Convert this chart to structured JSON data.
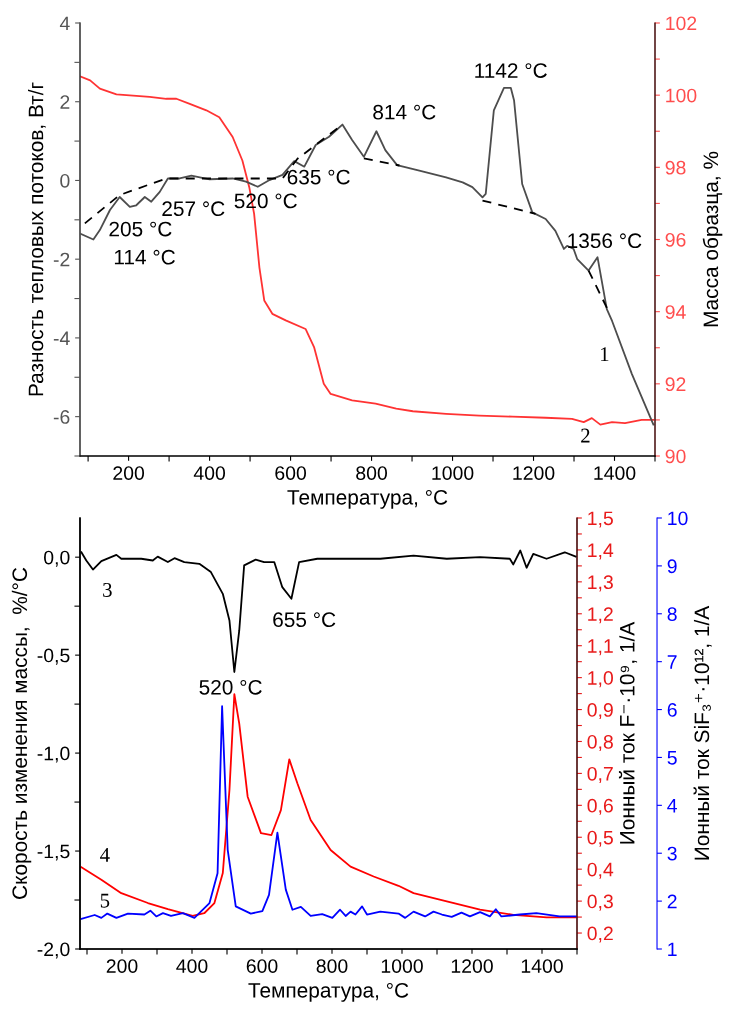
{
  "chart_data": [
    {
      "type": "line",
      "xlabel": "Температура, °C",
      "ylabel": "Разность тепловых потоков, Вт/г",
      "y2label": "Масса образца, %",
      "xlim": [
        80,
        1500
      ],
      "xticks": [
        {
          "value": 100,
          "label": null
        },
        200,
        {
          "value": 300,
          "label": null
        },
        400,
        {
          "value": 500,
          "label": null
        },
        600,
        {
          "value": 700,
          "label": null
        },
        800,
        {
          "value": 900,
          "label": null
        },
        1000,
        {
          "value": 1100,
          "label": null
        },
        1200,
        {
          "value": 1300,
          "label": null
        },
        1400,
        {
          "value": 1500,
          "label": null
        }
      ],
      "ylim": [
        -7,
        4
      ],
      "yticks": [
        {
          "value": -7,
          "label": null
        },
        -6,
        {
          "value": -5,
          "label": null
        },
        -4,
        {
          "value": -3,
          "label": null
        },
        -2,
        {
          "value": -1,
          "label": null
        },
        0,
        {
          "value": 1,
          "label": null
        },
        2,
        {
          "value": 3,
          "label": null
        },
        4
      ],
      "y2lim": [
        90,
        102
      ],
      "y2ticks": [
        90,
        {
          "value": 91,
          "label": null
        },
        92,
        {
          "value": 93,
          "label": null
        },
        94,
        {
          "value": 95,
          "label": null
        },
        96,
        {
          "value": 97,
          "label": null
        },
        98,
        {
          "value": 99,
          "label": null
        },
        100,
        {
          "value": 101,
          "label": null
        },
        102
      ],
      "grid": false,
      "series": [
        {
          "color": "#4d4d4d",
          "x": [
            80,
            113,
            129,
            154,
            178,
            203,
            219,
            240,
            256,
            277,
            297,
            326,
            355,
            400,
            457,
            490,
            519,
            548,
            580,
            609,
            634,
            662,
            695,
            728,
            752,
            781,
            812,
            834,
            863,
            918,
            984,
            1025,
            1049,
            1074,
            1082,
            1102,
            1127,
            1144,
            1152,
            1172,
            1197,
            1230,
            1254,
            1275,
            1283,
            1299,
            1308,
            1336,
            1358,
            1381,
            1394,
            1443,
            1496
          ],
          "values": [
            -1.35,
            -1.5,
            -1.26,
            -0.75,
            -0.42,
            -0.67,
            -0.63,
            -0.42,
            -0.54,
            -0.29,
            0.05,
            0.05,
            0.12,
            0.03,
            0.05,
            -0.03,
            -0.16,
            0.01,
            0.14,
            0.49,
            0.35,
            0.9,
            1.11,
            1.42,
            1.03,
            0.6,
            1.25,
            0.77,
            0.39,
            0.25,
            0.08,
            -0.05,
            -0.17,
            -0.43,
            -0.34,
            1.78,
            2.35,
            2.35,
            2.03,
            -0.09,
            -0.81,
            -0.98,
            -1.28,
            -1.74,
            -1.66,
            -1.74,
            -2.0,
            -2.29,
            -1.95,
            -3.27,
            -3.57,
            -4.92,
            -6.2
          ]
        },
        {
          "color": "#000000",
          "line_style": "dashed",
          "x": [
            92,
            178,
            293,
            580,
            617,
            728,
            755,
            781,
            869,
            970,
            1074,
            1205,
            1270,
            1336,
            1389
          ],
          "values": [
            -1.09,
            -0.37,
            0.05,
            0.05,
            0.55,
            1.42,
            null,
            0.56,
            0.38,
            null,
            -0.51,
            -0.85,
            null,
            -2.29,
            -3.4
          ]
        },
        {
          "color": "#ff3333",
          "axis": "y2",
          "x": [
            80,
            105,
            129,
            170,
            211,
            252,
            293,
            318,
            351,
            392,
            424,
            457,
            481,
            498,
            510,
            523,
            535,
            555,
            588,
            637,
            658,
            682,
            699,
            752,
            810,
            861,
            902,
            984,
            1066,
            1148,
            1230,
            1295,
            1324,
            1344,
            1365,
            1394,
            1426,
            1467,
            1496
          ],
          "values": [
            100.52,
            100.41,
            100.18,
            100.02,
            99.99,
            99.95,
            99.9,
            99.9,
            99.76,
            99.58,
            99.39,
            98.84,
            98.19,
            97.45,
            96.71,
            95.23,
            94.31,
            93.94,
            93.76,
            93.52,
            93.02,
            92.0,
            91.72,
            91.54,
            91.45,
            91.31,
            91.24,
            91.17,
            91.12,
            91.09,
            91.06,
            91.03,
            90.94,
            91.05,
            90.87,
            90.94,
            90.91,
            91.0,
            91.0
          ]
        }
      ],
      "annotations": [
        "114 °C",
        "205 °C",
        "257 °C",
        "520 °C",
        "635 °C",
        "814 °C",
        "1142 °C",
        "1356 °C",
        "1",
        "2"
      ]
    },
    {
      "type": "line",
      "xlabel": "Температура, °C",
      "ylabel": "Скорость изменения массы,  %/°C",
      "y2label": "Ионный ток F⁻·10⁹, 1/A",
      "y3label": "Ионный ток SiF₃⁺·10¹², 1/A",
      "xlim": [
        80,
        1500
      ],
      "xticks": [
        {
          "value": 100,
          "label": null
        },
        200,
        {
          "value": 300,
          "label": null
        },
        400,
        {
          "value": 500,
          "label": null
        },
        600,
        {
          "value": 700,
          "label": null
        },
        800,
        {
          "value": 900,
          "label": null
        },
        1000,
        {
          "value": 1100,
          "label": null
        },
        1200,
        {
          "value": 1300,
          "label": null
        },
        1400,
        {
          "value": 1500,
          "label": null
        }
      ],
      "ylim": [
        -2.0,
        0.2
      ],
      "yticks": [
        {
          "value": -2.0,
          "label": "-2,0"
        },
        {
          "value": -1.75,
          "label": null
        },
        {
          "value": -1.5,
          "label": "-1,5"
        },
        {
          "value": -1.25,
          "label": null
        },
        {
          "value": -1.0,
          "label": "-1,0"
        },
        {
          "value": -0.75,
          "label": null
        },
        {
          "value": -0.5,
          "label": "-0,5"
        },
        {
          "value": -0.25,
          "label": null
        },
        {
          "value": 0.0,
          "label": "0,0"
        }
      ],
      "y2lim": [
        0.15,
        1.5
      ],
      "y2ticks": [
        {
          "value": 0.2,
          "label": "0,2"
        },
        {
          "value": 0.25,
          "label": null
        },
        {
          "value": 0.3,
          "label": "0,3"
        },
        {
          "value": 0.35,
          "label": null
        },
        {
          "value": 0.4,
          "label": "0,4"
        },
        {
          "value": 0.45,
          "label": null
        },
        {
          "value": 0.5,
          "label": "0,5"
        },
        {
          "value": 0.55,
          "label": null
        },
        {
          "value": 0.6,
          "label": "0,6"
        },
        {
          "value": 0.65,
          "label": null
        },
        {
          "value": 0.7,
          "label": "0,7"
        },
        {
          "value": 0.75,
          "label": null
        },
        {
          "value": 0.8,
          "label": "0,8"
        },
        {
          "value": 0.85,
          "label": null
        },
        {
          "value": 0.9,
          "label": "0,9"
        },
        {
          "value": 0.95,
          "label": null
        },
        {
          "value": 1.0,
          "label": "1,0"
        },
        {
          "value": 1.05,
          "label": null
        },
        {
          "value": 1.1,
          "label": "1,1"
        },
        {
          "value": 1.15,
          "label": null
        },
        {
          "value": 1.2,
          "label": "1,2"
        },
        {
          "value": 1.25,
          "label": null
        },
        {
          "value": 1.3,
          "label": "1,3"
        },
        {
          "value": 1.35,
          "label": null
        },
        {
          "value": 1.4,
          "label": "1,4"
        },
        {
          "value": 1.45,
          "label": null
        },
        {
          "value": 1.5,
          "label": "1,5"
        }
      ],
      "y3lim": [
        1,
        10
      ],
      "y3ticks": [
        1,
        2,
        3,
        4,
        5,
        6,
        7,
        8,
        9,
        10
      ],
      "grid": false,
      "series": [
        {
          "color": "#000000",
          "x": [
            84,
            98,
            117,
            141,
            184,
            198,
            255,
            288,
            302,
            331,
            350,
            378,
            421,
            454,
            488,
            507,
            521,
            535,
            549,
            582,
            606,
            635,
            658,
            684,
            706,
            758,
            853,
            938,
            1033,
            1128,
            1223,
            1308,
            1318,
            1338,
            1356,
            1375,
            1413,
            1465,
            1496
          ],
          "values": [
            0.025,
            -0.017,
            -0.063,
            -0.02,
            0.012,
            -0.008,
            -0.008,
            -0.017,
            0.003,
            -0.025,
            -0.005,
            -0.025,
            -0.034,
            -0.076,
            -0.187,
            -0.323,
            -0.586,
            -0.374,
            -0.042,
            -0.012,
            -0.025,
            -0.025,
            -0.153,
            -0.212,
            -0.025,
            -0.008,
            -0.008,
            -0.008,
            0.008,
            -0.008,
            0.0,
            -0.008,
            -0.037,
            0.034,
            -0.054,
            0.017,
            -0.008,
            0.025,
            0.003
          ]
        },
        {
          "color": "#ff0000",
          "axis": "y2",
          "x": [
            84,
            141,
            198,
            274,
            331,
            402,
            435,
            464,
            488,
            507,
            521,
            535,
            559,
            597,
            627,
            654,
            678,
            701,
            739,
            796,
            853,
            919,
            990,
            1033,
            1128,
            1223,
            1318,
            1413,
            1450,
            1496
          ],
          "values": [
            0.406,
            0.367,
            0.325,
            0.294,
            0.275,
            0.254,
            0.262,
            0.294,
            0.388,
            0.648,
            0.948,
            0.856,
            0.627,
            0.513,
            0.507,
            0.585,
            0.744,
            0.669,
            0.554,
            0.46,
            0.408,
            0.377,
            0.348,
            0.325,
            0.299,
            0.273,
            0.257,
            0.249,
            0.249,
            0.249
          ]
        },
        {
          "color": "#0000ff",
          "axis": "y3",
          "x": [
            84,
            122,
            141,
            158,
            184,
            217,
            264,
            281,
            298,
            317,
            340,
            374,
            407,
            450,
            473,
            486,
            502,
            525,
            568,
            601,
            620,
            644,
            668,
            687,
            711,
            739,
            772,
            801,
            823,
            839,
            853,
            867,
            886,
            900,
            938,
            990,
            1009,
            1033,
            1066,
            1090,
            1114,
            1142,
            1170,
            1194,
            1223,
            1251,
            1268,
            1284,
            1337,
            1384,
            1450,
            1496
          ],
          "values": [
            1.63,
            1.71,
            1.65,
            1.74,
            1.65,
            1.74,
            1.72,
            1.8,
            1.68,
            1.75,
            1.69,
            1.75,
            1.65,
            1.96,
            2.58,
            6.07,
            3.07,
            1.89,
            1.74,
            1.79,
            2.13,
            3.43,
            2.24,
            1.82,
            1.88,
            1.69,
            1.73,
            1.65,
            1.82,
            1.69,
            1.78,
            1.72,
            1.89,
            1.72,
            1.78,
            1.74,
            1.65,
            1.78,
            1.68,
            1.78,
            1.72,
            1.67,
            1.76,
            1.68,
            1.77,
            1.68,
            1.83,
            1.68,
            1.72,
            1.75,
            1.68,
            1.68
          ]
        }
      ],
      "annotations": [
        "3",
        "655 °C",
        "520 °C",
        "4",
        "5"
      ]
    }
  ]
}
